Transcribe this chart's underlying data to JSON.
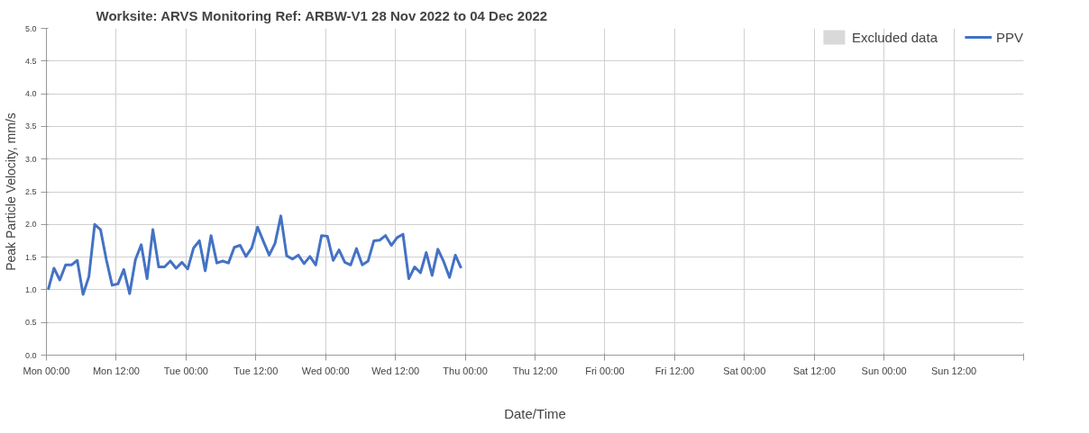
{
  "chart_data": {
    "type": "line",
    "title": "Worksite: ARVS    Monitoring Ref: ARBW-V1     28 Nov 2022 to 04 Dec 2022",
    "xlabel": "Date/Time",
    "ylabel": "Peak Particle Velocity, mm/s",
    "x": [
      "2022-11-28T00:18",
      "2022-11-28T01:18",
      "2022-11-28T02:18",
      "2022-11-28T03:18",
      "2022-11-28T04:18",
      "2022-11-28T05:18",
      "2022-11-28T06:18",
      "2022-11-28T07:18",
      "2022-11-28T08:18",
      "2022-11-28T09:18",
      "2022-11-28T10:18",
      "2022-11-28T11:18",
      "2022-11-28T12:18",
      "2022-11-28T13:18",
      "2022-11-28T14:18",
      "2022-11-28T15:18",
      "2022-11-28T16:18",
      "2022-11-28T17:18",
      "2022-11-28T18:18",
      "2022-11-28T19:18",
      "2022-11-28T20:18",
      "2022-11-28T21:18",
      "2022-11-28T22:18",
      "2022-11-28T23:18",
      "2022-11-29T00:18",
      "2022-11-29T01:18",
      "2022-11-29T02:18",
      "2022-11-29T03:18",
      "2022-11-29T04:18",
      "2022-11-29T05:18",
      "2022-11-29T06:18",
      "2022-11-29T07:18",
      "2022-11-29T08:18",
      "2022-11-29T09:18",
      "2022-11-29T10:18",
      "2022-11-29T11:18",
      "2022-11-29T12:18",
      "2022-11-29T13:18",
      "2022-11-29T14:18",
      "2022-11-29T15:18",
      "2022-11-29T16:18",
      "2022-11-29T17:18",
      "2022-11-29T18:18",
      "2022-11-29T19:18",
      "2022-11-29T20:18",
      "2022-11-29T21:18",
      "2022-11-29T22:18",
      "2022-11-29T23:18",
      "2022-11-30T00:18",
      "2022-11-30T01:18",
      "2022-11-30T02:18",
      "2022-11-30T03:18",
      "2022-11-30T04:18",
      "2022-11-30T05:18",
      "2022-11-30T06:18",
      "2022-11-30T07:18",
      "2022-11-30T08:18",
      "2022-11-30T09:18",
      "2022-11-30T10:18",
      "2022-11-30T11:18",
      "2022-11-30T12:18",
      "2022-11-30T13:18",
      "2022-11-30T14:18",
      "2022-11-30T15:18",
      "2022-11-30T16:18",
      "2022-11-30T17:18",
      "2022-11-30T18:18",
      "2022-11-30T19:18",
      "2022-11-30T20:18",
      "2022-11-30T21:18",
      "2022-11-30T22:18",
      "2022-11-30T23:18"
    ],
    "series": [
      {
        "name": "Excluded data",
        "type": "bar",
        "color": "#d9d9d9",
        "values": [
          null,
          null,
          null,
          null,
          null,
          null,
          null,
          null,
          null,
          null,
          null,
          null,
          null,
          null,
          null,
          null,
          null,
          null,
          null,
          null,
          null,
          null,
          null,
          null,
          null,
          null,
          null,
          null,
          null,
          null,
          null,
          null,
          null,
          null,
          null,
          null,
          null,
          null,
          null,
          null,
          null,
          null,
          null,
          null,
          null,
          null,
          null,
          null,
          null,
          null,
          null,
          null,
          null,
          null,
          null,
          null,
          null,
          null,
          null,
          null,
          null,
          null,
          null,
          null,
          null,
          null,
          null,
          null,
          null,
          null,
          null,
          null
        ]
      },
      {
        "name": "PPV",
        "color": "#4472c4",
        "values": [
          1.0,
          1.33,
          1.15,
          1.38,
          1.38,
          1.45,
          0.93,
          1.2,
          2.0,
          1.92,
          1.46,
          1.07,
          1.09,
          1.31,
          0.94,
          1.46,
          1.69,
          1.17,
          1.92,
          1.35,
          1.35,
          1.44,
          1.33,
          1.42,
          1.32,
          1.64,
          1.75,
          1.29,
          1.83,
          1.41,
          1.44,
          1.41,
          1.65,
          1.68,
          1.51,
          1.64,
          1.96,
          1.74,
          1.53,
          1.71,
          2.13,
          1.52,
          1.47,
          1.53,
          1.4,
          1.51,
          1.38,
          1.83,
          1.82,
          1.45,
          1.61,
          1.42,
          1.38,
          1.63,
          1.38,
          1.44,
          1.75,
          1.76,
          1.83,
          1.68,
          1.8,
          1.85,
          1.17,
          1.35,
          1.26,
          1.57,
          1.22,
          1.62,
          1.43,
          1.19,
          1.53,
          1.33
        ]
      }
    ],
    "xlim": [
      "2022-11-28T00:00",
      "2022-12-05T00:00"
    ],
    "xticks": [
      {
        "value": "2022-11-28T00:00",
        "label": "Mon 00:00"
      },
      {
        "value": "2022-11-28T12:00",
        "label": "Mon 12:00"
      },
      {
        "value": "2022-11-29T00:00",
        "label": "Tue 00:00"
      },
      {
        "value": "2022-11-29T12:00",
        "label": "Tue 12:00"
      },
      {
        "value": "2022-11-30T00:00",
        "label": "Wed 00:00"
      },
      {
        "value": "2022-11-30T12:00",
        "label": "Wed 12:00"
      },
      {
        "value": "2022-12-01T00:00",
        "label": "Thu 00:00"
      },
      {
        "value": "2022-12-01T12:00",
        "label": "Thu 12:00"
      },
      {
        "value": "2022-12-02T00:00",
        "label": "Fri 00:00"
      },
      {
        "value": "2022-12-02T12:00",
        "label": "Fri 12:00"
      },
      {
        "value": "2022-12-03T00:00",
        "label": "Sat 00:00"
      },
      {
        "value": "2022-12-03T12:00",
        "label": "Sat 12:00"
      },
      {
        "value": "2022-12-04T00:00",
        "label": "Sun 00:00"
      },
      {
        "value": "2022-12-04T12:00",
        "label": "Sun 12:00"
      },
      {
        "value": "2022-12-05T00:00",
        "label": null
      }
    ],
    "ylim": [
      0,
      5
    ],
    "yticks": [
      {
        "value": 0,
        "label": "0.0"
      },
      {
        "value": 0.5,
        "label": "0.5"
      },
      {
        "value": 1,
        "label": "1.0"
      },
      {
        "value": 1.5,
        "label": "1.5"
      },
      {
        "value": 2,
        "label": "2.0"
      },
      {
        "value": 2.5,
        "label": "2.5"
      },
      {
        "value": 3,
        "label": "3.0"
      },
      {
        "value": 3.5,
        "label": "3.5"
      },
      {
        "value": 4,
        "label": "4.0"
      },
      {
        "value": 4.5,
        "label": "4.5"
      },
      {
        "value": 5,
        "label": "5.0"
      }
    ],
    "grid": true,
    "legend": "top right",
    "marker": "none",
    "line_style": "solid"
  }
}
